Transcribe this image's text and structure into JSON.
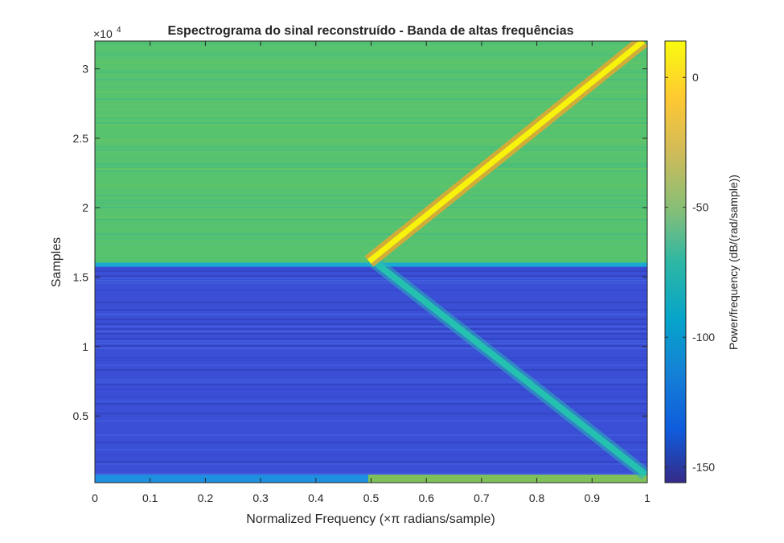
{
  "chart_data": {
    "type": "heatmap",
    "title": "Espectrograma do sinal reconstruído - Banda de altas frequências",
    "xlabel": "Normalized Frequency (×π radians/sample)",
    "ylabel": "Samples",
    "y_exponent_label": "×10",
    "y_exponent": "4",
    "colorbar_label": "Power/frequency (dB/(rad/sample))",
    "xlim": [
      0,
      1
    ],
    "ylim": [
      200,
      32000
    ],
    "x_ticks": [
      0,
      0.1,
      0.2,
      0.3,
      0.4,
      0.5,
      0.6,
      0.7,
      0.8,
      0.9,
      1
    ],
    "x_tick_labels": [
      "0",
      "0.1",
      "0.2",
      "0.3",
      "0.4",
      "0.5",
      "0.6",
      "0.7",
      "0.8",
      "0.9",
      "1"
    ],
    "y_ticks": [
      5000,
      10000,
      15000,
      20000,
      25000,
      30000
    ],
    "y_tick_labels": [
      "0.5",
      "1",
      "1.5",
      "2",
      "2.5",
      "3"
    ],
    "colorbar_range": [
      -156,
      14
    ],
    "colorbar_ticks": [
      0,
      -50,
      -100,
      -150
    ],
    "colorbar_tick_labels": [
      "0",
      "-50",
      "-100",
      "-150"
    ],
    "colormap": "parula",
    "regions": [
      {
        "name": "upper background",
        "y_range": [
          16000,
          32000
        ],
        "level_db": -55
      },
      {
        "name": "lower background",
        "y_range": [
          200,
          16000
        ],
        "level_db": -130
      },
      {
        "name": "bottom strip (f>0.5)",
        "y_range": [
          200,
          800
        ],
        "level_db": -55
      }
    ],
    "features": [
      {
        "name": "rising chirp",
        "from": [
          0.5,
          16000
        ],
        "to": [
          1.0,
          32000
        ],
        "level_db": 5
      },
      {
        "name": "falling chirp",
        "from": [
          0.5,
          16000
        ],
        "to": [
          1.0,
          800
        ],
        "level_db": -80
      }
    ],
    "grid": false
  }
}
